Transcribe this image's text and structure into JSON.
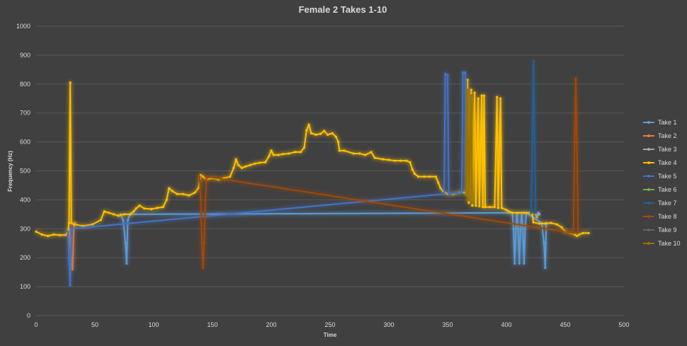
{
  "chart_data": {
    "type": "line",
    "title": "Female 2 Takes 1-10",
    "xlabel": "Time",
    "ylabel": "Frequency (Hz)",
    "xlim": [
      0,
      500
    ],
    "ylim": [
      0,
      1000
    ],
    "xticks": [
      0,
      50,
      100,
      150,
      200,
      250,
      300,
      350,
      400,
      450,
      500
    ],
    "yticks": [
      0,
      100,
      200,
      300,
      400,
      500,
      600,
      700,
      800,
      900,
      1000
    ],
    "grid": "horizontal",
    "legend_position": "right",
    "series": [
      {
        "name": "Take 1",
        "color": "#5b9bd5",
        "points": [
          [
            72,
            350
          ],
          [
            74,
            330
          ],
          [
            76,
            250
          ],
          [
            77,
            180
          ],
          [
            78,
            330
          ],
          [
            80,
            350
          ],
          [
            405,
            355
          ],
          [
            406,
            300
          ],
          [
            407,
            180
          ],
          [
            408,
            300
          ],
          [
            409,
            355
          ],
          [
            410,
            300
          ],
          [
            411,
            180
          ],
          [
            412,
            300
          ],
          [
            413,
            355
          ],
          [
            414,
            300
          ],
          [
            415,
            180
          ],
          [
            416,
            300
          ],
          [
            417,
            355
          ],
          [
            430,
            320
          ],
          [
            432,
            250
          ],
          [
            433,
            165
          ],
          [
            434,
            320
          ]
        ]
      },
      {
        "name": "Take 2",
        "color": "#ed7d31",
        "points": [
          [
            28,
            300
          ],
          [
            29,
            250
          ],
          [
            30,
            190
          ],
          [
            31,
            160
          ],
          [
            32,
            300
          ],
          [
            33,
            320
          ]
        ]
      },
      {
        "name": "Take 3",
        "color": "#a5a5a5",
        "points": [
          [
            425,
            350
          ],
          [
            426,
            340
          ],
          [
            427,
            355
          ],
          [
            428,
            350
          ]
        ]
      },
      {
        "name": "Take 4",
        "color": "#ffc000",
        "points": [
          [
            0,
            290
          ],
          [
            5,
            280
          ],
          [
            10,
            275
          ],
          [
            15,
            280
          ],
          [
            20,
            278
          ],
          [
            25,
            278
          ],
          [
            27,
            290
          ],
          [
            28,
            320
          ],
          [
            29,
            805
          ],
          [
            30,
            320
          ],
          [
            32,
            315
          ],
          [
            40,
            310
          ],
          [
            48,
            315
          ],
          [
            55,
            330
          ],
          [
            58,
            360
          ],
          [
            62,
            355
          ],
          [
            66,
            350
          ],
          [
            70,
            345
          ],
          [
            75,
            350
          ],
          [
            80,
            350
          ],
          [
            83,
            360
          ],
          [
            85,
            370
          ],
          [
            88,
            380
          ],
          [
            92,
            370
          ],
          [
            98,
            368
          ],
          [
            103,
            372
          ],
          [
            108,
            375
          ],
          [
            111,
            400
          ],
          [
            113,
            440
          ],
          [
            116,
            430
          ],
          [
            120,
            420
          ],
          [
            125,
            420
          ],
          [
            130,
            415
          ],
          [
            135,
            425
          ],
          [
            138,
            440
          ],
          [
            140,
            485
          ],
          [
            142,
            480
          ],
          [
            145,
            470
          ],
          [
            150,
            475
          ],
          [
            155,
            470
          ],
          [
            160,
            475
          ],
          [
            165,
            480
          ],
          [
            168,
            510
          ],
          [
            170,
            540
          ],
          [
            172,
            520
          ],
          [
            175,
            510
          ],
          [
            178,
            515
          ],
          [
            182,
            520
          ],
          [
            186,
            525
          ],
          [
            190,
            528
          ],
          [
            195,
            530
          ],
          [
            198,
            550
          ],
          [
            200,
            570
          ],
          [
            202,
            555
          ],
          [
            206,
            555
          ],
          [
            210,
            558
          ],
          [
            215,
            560
          ],
          [
            220,
            565
          ],
          [
            225,
            565
          ],
          [
            228,
            580
          ],
          [
            230,
            640
          ],
          [
            232,
            660
          ],
          [
            234,
            630
          ],
          [
            238,
            625
          ],
          [
            242,
            628
          ],
          [
            245,
            638
          ],
          [
            248,
            625
          ],
          [
            252,
            630
          ],
          [
            255,
            618
          ],
          [
            257,
            600
          ],
          [
            258,
            570
          ],
          [
            262,
            570
          ],
          [
            270,
            560
          ],
          [
            275,
            560
          ],
          [
            280,
            555
          ],
          [
            285,
            565
          ],
          [
            288,
            545
          ],
          [
            295,
            540
          ],
          [
            300,
            538
          ],
          [
            305,
            535
          ],
          [
            310,
            535
          ],
          [
            315,
            535
          ],
          [
            318,
            530
          ],
          [
            320,
            505
          ],
          [
            322,
            490
          ],
          [
            325,
            480
          ],
          [
            330,
            480
          ],
          [
            335,
            480
          ],
          [
            340,
            480
          ],
          [
            342,
            460
          ],
          [
            344,
            440
          ],
          [
            346,
            430
          ],
          [
            350,
            420
          ],
          [
            355,
            420
          ],
          [
            360,
            425
          ],
          [
            365,
            425
          ],
          [
            366,
            420
          ],
          [
            367,
            815
          ],
          [
            368,
            390
          ],
          [
            370,
            780
          ],
          [
            371,
            380
          ],
          [
            373,
            770
          ],
          [
            374,
            380
          ],
          [
            376,
            750
          ],
          [
            377,
            378
          ],
          [
            379,
            760
          ],
          [
            380,
            375
          ],
          [
            381,
            760
          ],
          [
            382,
            375
          ],
          [
            386,
            375
          ],
          [
            390,
            375
          ],
          [
            392,
            755
          ],
          [
            393,
            372
          ],
          [
            395,
            750
          ],
          [
            396,
            372
          ],
          [
            400,
            365
          ],
          [
            402,
            360
          ],
          [
            405,
            355
          ],
          [
            410,
            355
          ],
          [
            415,
            355
          ],
          [
            420,
            355
          ],
          [
            422,
            350
          ],
          [
            423,
            322
          ],
          [
            428,
            318
          ],
          [
            433,
            318
          ],
          [
            438,
            320
          ],
          [
            443,
            315
          ],
          [
            447,
            305
          ],
          [
            450,
            290
          ],
          [
            455,
            285
          ],
          [
            458,
            280
          ],
          [
            460,
            275
          ],
          [
            462,
            280
          ],
          [
            465,
            285
          ],
          [
            470,
            285
          ]
        ]
      },
      {
        "name": "Take 5",
        "color": "#4472c4",
        "points": [
          [
            27,
            290
          ],
          [
            28,
            200
          ],
          [
            29,
            105
          ],
          [
            30,
            300
          ],
          [
            347,
            420
          ],
          [
            348,
            835
          ],
          [
            350,
            830
          ],
          [
            351,
            420
          ],
          [
            362,
            425
          ],
          [
            363,
            840
          ],
          [
            365,
            840
          ],
          [
            366,
            425
          ]
        ]
      },
      {
        "name": "Take 6",
        "color": "#70ad47",
        "points": []
      },
      {
        "name": "Take 7",
        "color": "#255e91",
        "points": [
          [
            421,
            355
          ],
          [
            422,
            600
          ],
          [
            423,
            880
          ],
          [
            424,
            600
          ],
          [
            425,
            355
          ]
        ]
      },
      {
        "name": "Take 8",
        "color": "#9e480e",
        "points": [
          [
            139,
            480
          ],
          [
            140,
            400
          ],
          [
            141,
            250
          ],
          [
            142,
            165
          ],
          [
            143,
            250
          ],
          [
            144,
            400
          ],
          [
            145,
            480
          ],
          [
            457,
            285
          ],
          [
            458,
            600
          ],
          [
            459,
            820
          ],
          [
            460,
            600
          ],
          [
            461,
            290
          ]
        ]
      },
      {
        "name": "Take 9",
        "color": "#636363",
        "points": []
      },
      {
        "name": "Take 10",
        "color": "#997300",
        "points": [
          [
            366,
            420
          ],
          [
            367,
            780
          ],
          [
            368,
            400
          ],
          [
            370,
            760
          ],
          [
            371,
            390
          ]
        ]
      }
    ]
  }
}
